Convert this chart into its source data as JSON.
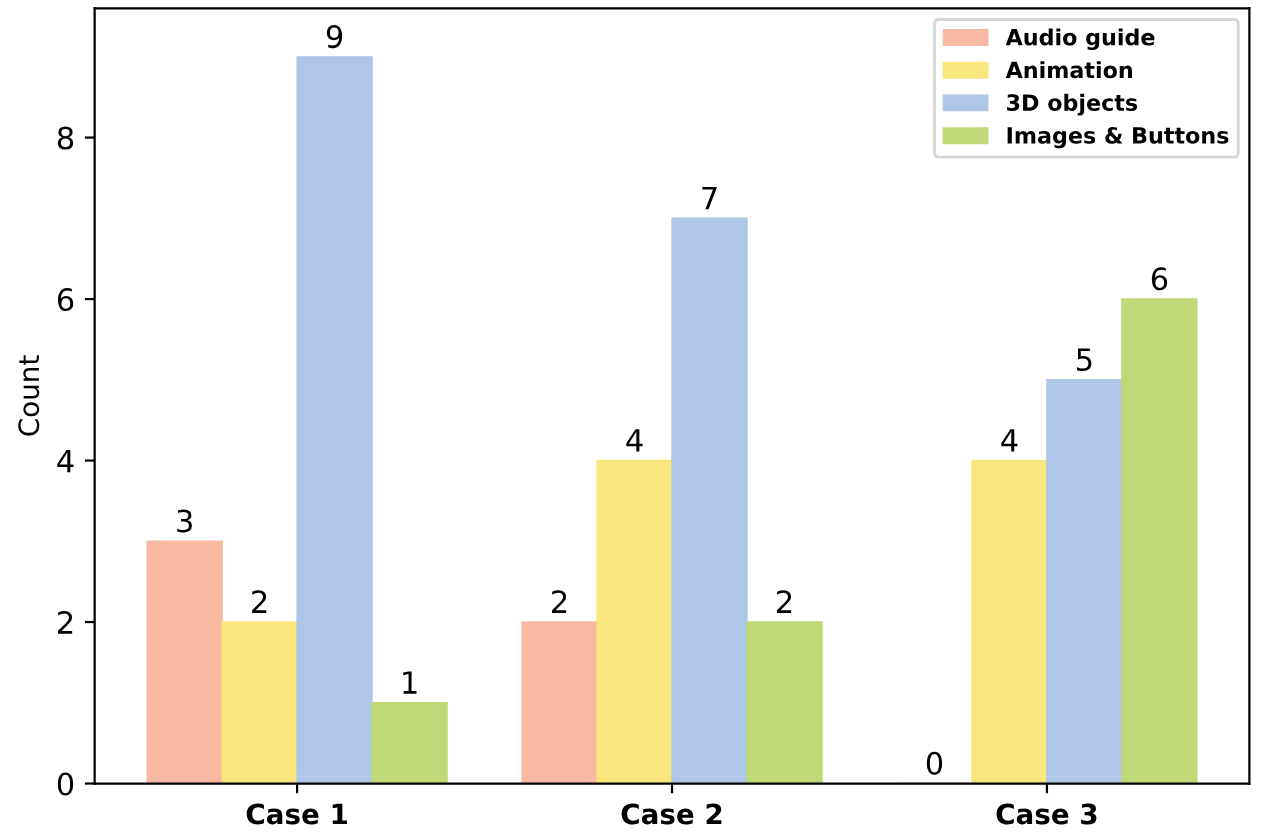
{
  "chart_data": {
    "type": "bar",
    "ylabel": "Count",
    "categories": [
      "Case 1",
      "Case 2",
      "Case 3"
    ],
    "series": [
      {
        "name": "Audio guide",
        "color": "#f7b9a2",
        "values": [
          3,
          2,
          0
        ]
      },
      {
        "name": "Animation",
        "color": "#fae67e",
        "values": [
          2,
          4,
          4
        ]
      },
      {
        "name": "3D objects",
        "color": "#aec6e8",
        "values": [
          9,
          7,
          5
        ]
      },
      {
        "name": "Images & Buttons",
        "color": "#c0d878",
        "values": [
          1,
          2,
          6
        ]
      }
    ],
    "ylim": [
      0,
      9.6
    ],
    "yticks": [
      0,
      2,
      4,
      6,
      8
    ],
    "grid": false,
    "legend": "top right",
    "data_labels": true
  }
}
